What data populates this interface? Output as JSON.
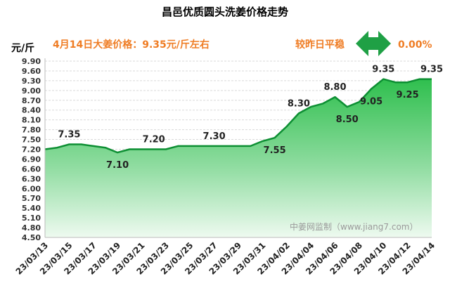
{
  "header": {
    "title": "昌邑优质圆头洗姜价格走势",
    "unit": "元/斤",
    "price_text": "4月14日大姜价格：9.35元/斤左右",
    "compare_text": "较昨日平稳",
    "change_text": "0.00%",
    "arrow_icon": "double-arrow-icon"
  },
  "watermark": "中姜网监制（www.jiang7.com）",
  "colors": {
    "accent_orange": "#ef7d25",
    "arrow_green": "#1fa045",
    "line": "#0d8f33",
    "fill_top": "#2fbf4e",
    "fill_bottom": "#eefaf0"
  },
  "chart_data": {
    "type": "area",
    "title": "昌邑优质圆头洗姜价格走势",
    "ylabel": "元/斤",
    "xlabel": "",
    "ylim": [
      4.5,
      9.9
    ],
    "yticks": [
      "9.90",
      "9.60",
      "9.30",
      "9.00",
      "8.70",
      "8.40",
      "8.10",
      "7.80",
      "7.50",
      "7.20",
      "6.90",
      "6.60",
      "6.30",
      "6.00",
      "5.70",
      "5.40",
      "5.10",
      "4.80",
      "4.50"
    ],
    "categories": [
      "23/03/13",
      "23/03/14",
      "23/03/15",
      "23/03/16",
      "23/03/17",
      "23/03/18",
      "23/03/19",
      "23/03/20",
      "23/03/21",
      "23/03/22",
      "23/03/23",
      "23/03/24",
      "23/03/25",
      "23/03/26",
      "23/03/27",
      "23/03/28",
      "23/03/29",
      "23/03/30",
      "23/03/31",
      "23/04/01",
      "23/04/02",
      "23/04/03",
      "23/04/04",
      "23/04/05",
      "23/04/06",
      "23/04/07",
      "23/04/08",
      "23/04/09",
      "23/04/10",
      "23/04/11",
      "23/04/12",
      "23/04/13",
      "23/04/14"
    ],
    "xtick_labels": [
      "23/03/13",
      "23/03/15",
      "23/03/17",
      "23/03/19",
      "23/03/21",
      "23/03/23",
      "23/03/25",
      "23/03/27",
      "23/03/29",
      "23/03/31",
      "23/04/02",
      "23/04/04",
      "23/04/06",
      "23/04/08",
      "23/04/10",
      "23/04/12",
      "23/04/14"
    ],
    "values": [
      7.2,
      7.25,
      7.35,
      7.35,
      7.3,
      7.25,
      7.1,
      7.2,
      7.2,
      7.2,
      7.2,
      7.3,
      7.3,
      7.3,
      7.3,
      7.3,
      7.3,
      7.3,
      7.45,
      7.55,
      7.9,
      8.3,
      8.5,
      8.6,
      8.8,
      8.5,
      8.65,
      9.05,
      9.35,
      9.25,
      9.25,
      9.35,
      9.35
    ],
    "annotations": [
      {
        "index": 2,
        "text": "7.35",
        "pos": "above"
      },
      {
        "index": 6,
        "text": "7.10",
        "pos": "below"
      },
      {
        "index": 9,
        "text": "7.20",
        "pos": "above"
      },
      {
        "index": 14,
        "text": "7.30",
        "pos": "above"
      },
      {
        "index": 19,
        "text": "7.55",
        "pos": "below"
      },
      {
        "index": 21,
        "text": "8.30",
        "pos": "above"
      },
      {
        "index": 24,
        "text": "8.80",
        "pos": "above"
      },
      {
        "index": 25,
        "text": "8.50",
        "pos": "below"
      },
      {
        "index": 27,
        "text": "9.05",
        "pos": "below"
      },
      {
        "index": 28,
        "text": "9.35",
        "pos": "above"
      },
      {
        "index": 30,
        "text": "9.25",
        "pos": "below"
      },
      {
        "index": 32,
        "text": "9.35",
        "pos": "above"
      }
    ],
    "grid": true,
    "legend": "none"
  }
}
